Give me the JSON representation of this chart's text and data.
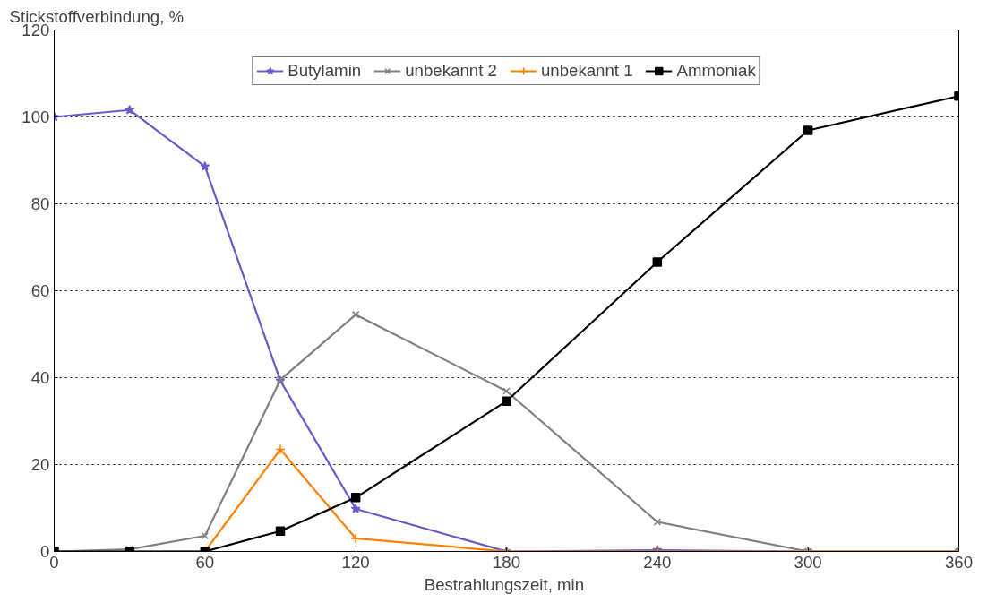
{
  "chart_data": {
    "type": "line",
    "xlabel": "Bestrahlungszeit,  min",
    "ylabel": "Stickstoffverbindung,  %",
    "x": [
      0,
      30,
      60,
      90,
      120,
      180,
      240,
      300,
      360
    ],
    "series": [
      {
        "name": "Butylamin",
        "color": "#6a5acd",
        "marker": "star",
        "values": [
          100,
          101.6,
          88.6,
          39.3,
          9.8,
          0,
          0.3,
          0,
          0
        ]
      },
      {
        "name": "unbekannt 2",
        "color": "#808080",
        "marker": "cross",
        "values": [
          0,
          0.5,
          3.6,
          39.5,
          54.5,
          36.9,
          6.8,
          0,
          0
        ]
      },
      {
        "name": "unbekannt 1",
        "color": "#ff8000",
        "marker": "plus",
        "values": [
          0,
          0,
          0,
          23.5,
          3,
          0,
          0,
          0,
          0
        ]
      },
      {
        "name": "Ammoniak",
        "color": "#000000",
        "marker": "square",
        "values": [
          0,
          0,
          0,
          4.7,
          12.4,
          34.6,
          66.6,
          96.9,
          104.8
        ]
      }
    ],
    "xlim": [
      0,
      360
    ],
    "xticks": [
      0,
      60,
      120,
      180,
      240,
      300,
      360
    ],
    "ylim": [
      0,
      120
    ],
    "yticks": [
      0,
      20,
      40,
      60,
      80,
      100,
      120
    ],
    "grid": "y",
    "legend": "top",
    "line_style": "solid"
  }
}
